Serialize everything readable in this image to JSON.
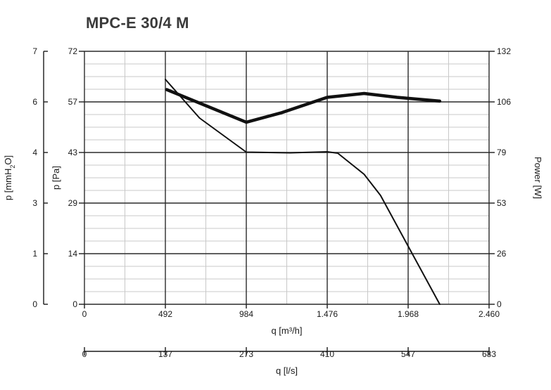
{
  "chart_data": {
    "type": "line",
    "title": "MPC-E 30/4 M",
    "x_primary": {
      "label": "q [m³/h]",
      "ticks": [
        "0",
        "492",
        "984",
        "1.476",
        "1.968",
        "2.460"
      ],
      "range": [
        0,
        2460
      ]
    },
    "x_secondary": {
      "label": "q [l/s]",
      "ticks": [
        "0",
        "137",
        "273",
        "410",
        "547",
        "683"
      ]
    },
    "y_left_outer": {
      "label": "p [mmH2O]",
      "ticks": [
        "0",
        "1",
        "3",
        "4",
        "6",
        "7"
      ]
    },
    "y_left_inner": {
      "label": "p [Pa]",
      "ticks": [
        "0",
        "14",
        "29",
        "43",
        "57",
        "72"
      ],
      "range": [
        0,
        72
      ]
    },
    "y_right": {
      "label": "Power [W]",
      "ticks": [
        "0",
        "26",
        "53",
        "79",
        "106",
        "132"
      ],
      "range": [
        0,
        132
      ]
    },
    "grid": true,
    "series": [
      {
        "axis": "y_left_inner",
        "x": [
          492,
          700,
          984,
          1250,
          1476,
          1540,
          1700,
          1800,
          2160
        ],
        "values": [
          64,
          53,
          43.3,
          43.1,
          43.4,
          43,
          37,
          31,
          0
        ]
      },
      {
        "axis": "y_right",
        "x": [
          500,
          984,
          1200,
          1476,
          1700,
          1900,
          2160
        ],
        "values": [
          112,
          95,
          100,
          108,
          110,
          108,
          106
        ]
      }
    ]
  }
}
